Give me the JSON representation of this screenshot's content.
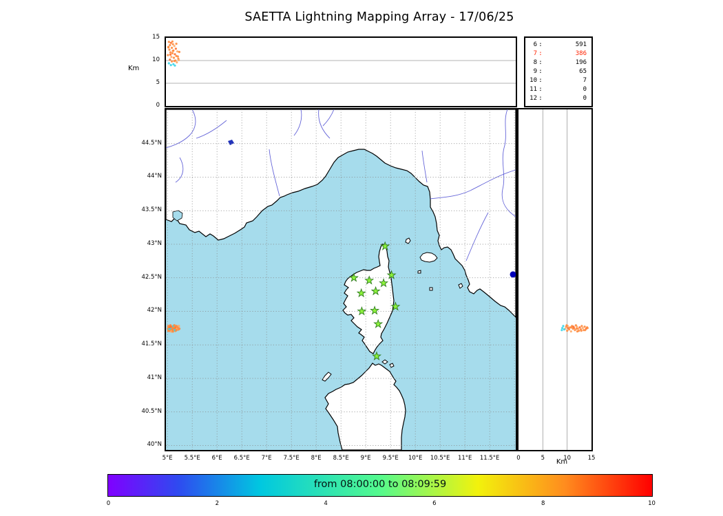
{
  "title": "SAETTA Lightning Mapping Array - 17/06/25",
  "colors": {
    "sea": "#a6dcec",
    "land": "#ffffff",
    "coast": "#000000",
    "river": "#6464d8",
    "lake_dark": "#2233bb",
    "grid": "#888888",
    "station": "#8df23c",
    "station_edge": "#2f7d1e",
    "blue_marker": "#0000b8",
    "highlight_red": "#ff2200",
    "flash": {
      "o": "#ff8a3c",
      "r": "#ff6f2e",
      "p": "#ffa866",
      "c": "#38d4e8"
    }
  },
  "panels": {
    "top": {
      "ylabel": "Km",
      "yticks": [
        {
          "v": 0,
          "label": "0"
        },
        {
          "v": 5,
          "label": "5"
        },
        {
          "v": 10,
          "label": "10"
        },
        {
          "v": 15,
          "label": "15"
        }
      ],
      "grid": [
        5,
        10
      ]
    },
    "right": {
      "xlabel": "Km",
      "xticks": [
        {
          "v": 0,
          "label": "0"
        },
        {
          "v": 5,
          "label": "5"
        },
        {
          "v": 10,
          "label": "10"
        },
        {
          "v": 15,
          "label": "15"
        }
      ],
      "grid": [
        5,
        10
      ]
    },
    "stats": {
      "rows": [
        {
          "bin": "6",
          "count": "591",
          "highlight": false
        },
        {
          "bin": "7",
          "count": "386",
          "highlight": true
        },
        {
          "bin": "8",
          "count": "196",
          "highlight": false
        },
        {
          "bin": "9",
          "count": "65",
          "highlight": false
        },
        {
          "bin": "10",
          "count": "7",
          "highlight": false
        },
        {
          "bin": "11",
          "count": "0",
          "highlight": false
        },
        {
          "bin": "12",
          "count": "0",
          "highlight": false
        }
      ]
    }
  },
  "map": {
    "lon_ticks": [
      {
        "v": 5,
        "label": "5°E"
      },
      {
        "v": 5.5,
        "label": "5.5°E"
      },
      {
        "v": 6,
        "label": "6°E"
      },
      {
        "v": 6.5,
        "label": "6.5°E"
      },
      {
        "v": 7,
        "label": "7°E"
      },
      {
        "v": 7.5,
        "label": "7.5°E"
      },
      {
        "v": 8,
        "label": "8°E"
      },
      {
        "v": 8.5,
        "label": "8.5°E"
      },
      {
        "v": 9,
        "label": "9°E"
      },
      {
        "v": 9.5,
        "label": "9.5°E"
      },
      {
        "v": 10,
        "label": "10°E"
      },
      {
        "v": 10.5,
        "label": "10.5°E"
      },
      {
        "v": 11,
        "label": "11°E"
      },
      {
        "v": 11.5,
        "label": "11.5°E"
      }
    ],
    "lat_ticks": [
      {
        "v": 40,
        "label": "40°N"
      },
      {
        "v": 40.5,
        "label": "40.5°N"
      },
      {
        "v": 41,
        "label": "41°N"
      },
      {
        "v": 41.5,
        "label": "41.5°N"
      },
      {
        "v": 42,
        "label": "42°N"
      },
      {
        "v": 42.5,
        "label": "42.5°N"
      },
      {
        "v": 43,
        "label": "43°N"
      },
      {
        "v": 43.5,
        "label": "43.5°N"
      },
      {
        "v": 44,
        "label": "44°N"
      },
      {
        "v": 44.5,
        "label": "44.5°N"
      }
    ],
    "grid_lons": [
      5,
      5.5,
      6,
      6.5,
      7,
      7.5,
      8,
      8.5,
      9,
      9.5,
      10,
      10.5,
      11,
      11.5,
      12
    ],
    "grid_lats": [
      40,
      40.5,
      41,
      41.5,
      42,
      42.5,
      43,
      43.5,
      44,
      44.5
    ]
  },
  "colorbar": {
    "label": "from 08:00:00 to 08:09:59",
    "ticks": [
      "0",
      "2",
      "4",
      "6",
      "8",
      "10"
    ],
    "gradient": [
      {
        "p": 0,
        "c": "#8000ff"
      },
      {
        "p": 13,
        "c": "#2e4bf0"
      },
      {
        "p": 28,
        "c": "#00c8e0"
      },
      {
        "p": 50,
        "c": "#55fa8d"
      },
      {
        "p": 68,
        "c": "#f2f20c"
      },
      {
        "p": 84,
        "c": "#ff8c1e"
      },
      {
        "p": 100,
        "c": "#ff0000"
      }
    ]
  },
  "chart_data": [
    {
      "type": "scatter",
      "name": "altitude-vs-longitude",
      "ylabel": "Km",
      "ylim": [
        0,
        15
      ],
      "xlim": [
        4.97,
        12.05
      ],
      "note": "altitude of lightning sources vs longitude; shares flash points with map-panel"
    },
    {
      "type": "scatter",
      "name": "map-panel",
      "xlabel": "Longitude",
      "ylabel": "Latitude",
      "xlim": [
        4.97,
        12.05
      ],
      "ylim": [
        39.91,
        45.01
      ],
      "stations_lonlat": [
        [
          9.39,
          42.97
        ],
        [
          8.76,
          42.5
        ],
        [
          9.07,
          42.46
        ],
        [
          9.36,
          42.42
        ],
        [
          9.52,
          42.54
        ],
        [
          8.91,
          42.27
        ],
        [
          9.2,
          42.3
        ],
        [
          9.6,
          42.07
        ],
        [
          8.92,
          42.0
        ],
        [
          9.18,
          42.01
        ],
        [
          9.25,
          41.81
        ],
        [
          9.22,
          41.33
        ]
      ],
      "extra_marker_lonlat": [
        11.97,
        42.55
      ],
      "flashes": [
        [
          5.03,
          41.76,
          14.1,
          "o"
        ],
        [
          5.07,
          41.74,
          13.9,
          "r"
        ],
        [
          5.11,
          41.77,
          13.6,
          "o"
        ],
        [
          5.05,
          41.72,
          13.4,
          "o"
        ],
        [
          5.14,
          41.75,
          13.2,
          "p"
        ],
        [
          5.02,
          41.78,
          13.0,
          "o"
        ],
        [
          5.09,
          41.73,
          12.8,
          "o"
        ],
        [
          5.17,
          41.76,
          12.6,
          "r"
        ],
        [
          5.04,
          41.71,
          12.4,
          "o"
        ],
        [
          5.12,
          41.74,
          12.2,
          "o"
        ],
        [
          5.2,
          41.77,
          12.0,
          "p"
        ],
        [
          5.06,
          41.79,
          11.8,
          "o"
        ],
        [
          5.1,
          41.72,
          11.6,
          "o"
        ],
        [
          5.15,
          41.75,
          11.4,
          "r"
        ],
        [
          5.01,
          41.74,
          11.2,
          "o"
        ],
        [
          5.18,
          41.78,
          11.0,
          "o"
        ],
        [
          5.08,
          41.7,
          10.8,
          "p"
        ],
        [
          5.13,
          41.76,
          10.6,
          "o"
        ],
        [
          5.22,
          41.73,
          10.4,
          "o"
        ],
        [
          5.05,
          41.75,
          10.2,
          "r"
        ],
        [
          5.16,
          41.71,
          10.0,
          "o"
        ],
        [
          5.09,
          41.77,
          9.8,
          "o"
        ],
        [
          5.19,
          41.74,
          9.6,
          "p"
        ],
        [
          5.03,
          41.73,
          9.4,
          "c"
        ],
        [
          5.12,
          41.78,
          9.2,
          "c"
        ],
        [
          5.07,
          41.75,
          9.0,
          "c"
        ],
        [
          5.15,
          41.72,
          8.9,
          "c"
        ],
        [
          5.21,
          41.76,
          10.9,
          "o"
        ],
        [
          5.24,
          41.74,
          11.9,
          "o"
        ],
        [
          5.02,
          41.71,
          12.9,
          "o"
        ],
        [
          5.18,
          41.72,
          13.7,
          "o"
        ],
        [
          5.11,
          41.7,
          12.1,
          "o"
        ],
        [
          5.06,
          41.77,
          11.3,
          "r"
        ],
        [
          5.23,
          41.78,
          10.1,
          "p"
        ],
        [
          5.14,
          41.79,
          9.9,
          "o"
        ],
        [
          5.1,
          41.75,
          14.2,
          "o"
        ]
      ]
    },
    {
      "type": "scatter",
      "name": "altitude-vs-latitude",
      "xlabel": "Km",
      "xlim": [
        0,
        15
      ],
      "ylim": [
        39.91,
        45.01
      ],
      "note": "altitude of lightning sources vs latitude; shares flash points with map-panel"
    },
    {
      "type": "table",
      "name": "source-counts",
      "rows": [
        [
          6,
          591
        ],
        [
          7,
          386
        ],
        [
          8,
          196
        ],
        [
          9,
          65
        ],
        [
          10,
          7
        ],
        [
          11,
          0
        ],
        [
          12,
          0
        ]
      ],
      "highlighted_row": 7
    },
    {
      "type": "colorbar",
      "label": "from 08:00:00 to 08:09:59",
      "range": [
        0,
        10
      ],
      "ticks": [
        0,
        2,
        4,
        6,
        8,
        10
      ]
    }
  ]
}
